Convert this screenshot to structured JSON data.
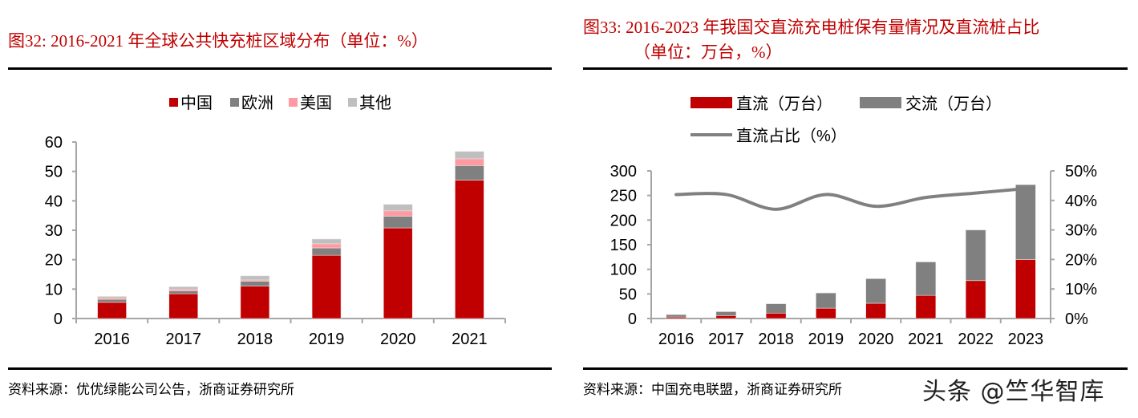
{
  "left_panel": {
    "title": "图32:  2016-2021 年全球公共快充桩区域分布（单位：%）",
    "source": "资料来源：优优绿能公司公告，浙商证券研究所"
  },
  "right_panel": {
    "title_line1": "图33:  2016-2023 年我国交直流充电桩保有量情况及直流桩占比",
    "title_line2": "（单位：万台，%）",
    "source": "资料来源：中国充电联盟，浙商证券研究所"
  },
  "watermark": "头条 @竺华智库",
  "colors": {
    "title_red": "#c00000",
    "china": "#c00000",
    "europe": "#808080",
    "usa": "#ff9aa2",
    "other": "#bfbfbf",
    "dc": "#c00000",
    "ac": "#808080",
    "line": "#808080",
    "axis": "#a6a6a6"
  },
  "chart_data": [
    {
      "type": "bar",
      "stacked": true,
      "title": "2016-2021 年全球公共快充桩区域分布（单位：%）",
      "categories": [
        "2016",
        "2017",
        "2018",
        "2019",
        "2020",
        "2021"
      ],
      "series": [
        {
          "name": "中国",
          "values": [
            5.5,
            8.4,
            11.0,
            21.5,
            30.8,
            47.0
          ]
        },
        {
          "name": "欧洲",
          "values": [
            1.0,
            1.0,
            1.7,
            2.5,
            4.0,
            5.0
          ]
        },
        {
          "name": "美国",
          "values": [
            0.4,
            0.5,
            0.4,
            1.4,
            1.8,
            2.3
          ]
        },
        {
          "name": "其他",
          "values": [
            0.6,
            0.9,
            1.4,
            1.6,
            2.2,
            2.5
          ]
        }
      ],
      "yticks": [
        "0",
        "10",
        "20",
        "30",
        "40",
        "50",
        "60"
      ],
      "ylim": [
        0,
        60
      ],
      "legend": "top",
      "grid": false
    },
    {
      "type": "bar",
      "stacked": true,
      "title": "2016-2023 年我国交直流充电桩保有量情况及直流桩占比（单位：万台，%）",
      "categories": [
        "2016",
        "2017",
        "2018",
        "2019",
        "2020",
        "2021",
        "2022",
        "2023"
      ],
      "series": [
        {
          "name": "直流（万台）",
          "values": [
            3,
            6,
            11,
            21,
            31,
            47,
            77,
            120
          ]
        },
        {
          "name": "交流（万台）",
          "values": [
            5,
            8,
            19,
            31,
            50,
            68,
            103,
            152
          ]
        }
      ],
      "line_series": {
        "name": "直流占比（%）",
        "axis": "right",
        "values": [
          42,
          42,
          37,
          42,
          38,
          41,
          42.5,
          44
        ]
      },
      "yticks_left": [
        "0",
        "50",
        "100",
        "150",
        "200",
        "250",
        "300"
      ],
      "yticks_right": [
        "0%",
        "10%",
        "20%",
        "30%",
        "40%",
        "50%"
      ],
      "ylim_left": [
        0,
        300
      ],
      "ylim_right": [
        0,
        50
      ],
      "legend": "top",
      "grid": false
    }
  ]
}
